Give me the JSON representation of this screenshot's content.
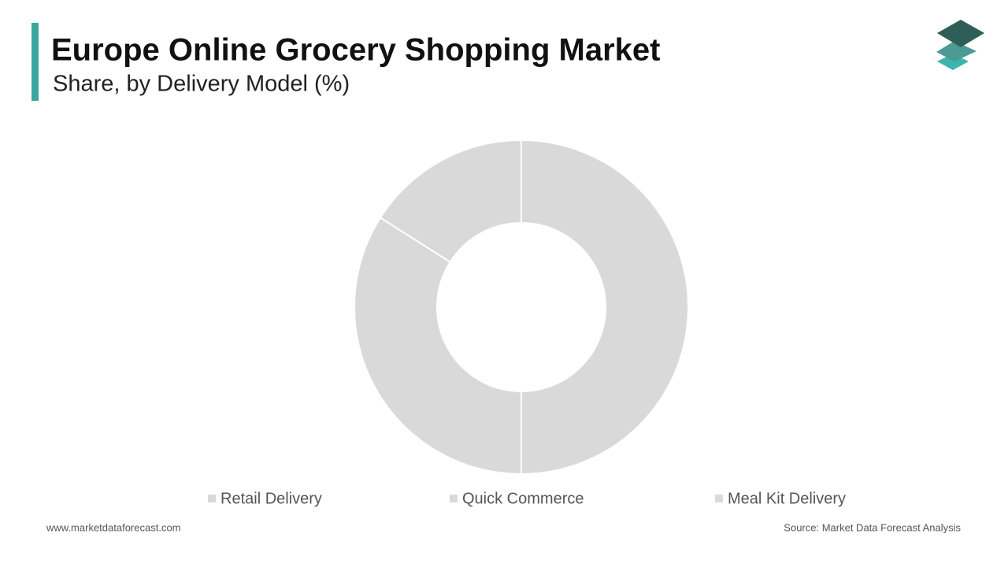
{
  "chart_data": {
    "type": "donut",
    "title": "Europe Online Grocery Shopping Market",
    "subtitle": "Share, by Delivery Model (%)",
    "categories": [
      "Retail Delivery",
      "Quick Commerce",
      "Meal Kit Delivery"
    ],
    "values": [
      50,
      34,
      16
    ],
    "colors": [
      "#d9d9d9",
      "#d9d9d9",
      "#d9d9d9"
    ],
    "legend": "bottom"
  },
  "footer": {
    "website": "www.marketdataforecast.com",
    "source": "Source: Market Data Forecast Analysis"
  }
}
